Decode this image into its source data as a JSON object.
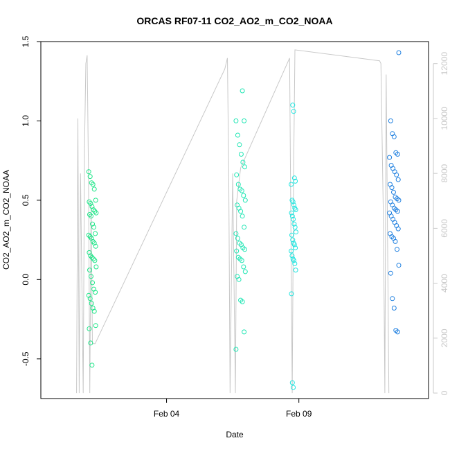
{
  "chart_data": {
    "type": "scatter",
    "title": "ORCAS RF07-11 CO2_AO2_m_CO2_NOAA",
    "xlabel": "Date",
    "ylabel": "CO2_AO2_m_CO2_NOAA",
    "x_ticks": [
      "Feb 04",
      "Feb 09"
    ],
    "x_tick_days": [
      4,
      9
    ],
    "x_range_days": [
      -0.75,
      13.9
    ],
    "y_ticks": [
      "-0.5",
      "0.0",
      "0.5",
      "1.0",
      "1.5"
    ],
    "y_ticks_values": [
      -0.5,
      0,
      0.5,
      1.0,
      1.5
    ],
    "ylim": [
      -0.75,
      1.5
    ],
    "right_axis": {
      "ticks": [
        "0",
        "2000",
        "4000",
        "6000",
        "8000",
        "10000",
        "12000"
      ],
      "tick_values": [
        0,
        2000,
        4000,
        6000,
        8000,
        10000,
        12000
      ],
      "range": [
        -200,
        12800
      ],
      "color": "#c8c8c8"
    },
    "grid": false,
    "legend": "none",
    "colors": {
      "flight1": "#1ee688",
      "flight2": "#20e6b4",
      "flight3": "#20e6e0",
      "flight4": "#2080e0",
      "altitude": "#c8c8c8"
    },
    "series": [
      {
        "color_key": "flight1",
        "x_day": 1.2,
        "spread_day": 0.28,
        "values": [
          0.68,
          0.65,
          0.61,
          0.6,
          0.57,
          0.5,
          0.49,
          0.48,
          0.46,
          0.44,
          0.43,
          0.42,
          0.41,
          0.4,
          0.35,
          0.33,
          0.29,
          0.28,
          0.27,
          0.26,
          0.24,
          0.23,
          0.21,
          0.17,
          0.15,
          0.14,
          0.13,
          0.12,
          0.08,
          0.06,
          0.02,
          -0.02,
          -0.06,
          -0.08,
          -0.1,
          -0.12,
          -0.15,
          -0.18,
          -0.2,
          -0.29,
          -0.31,
          -0.4,
          -0.54
        ]
      },
      {
        "color_key": "flight2",
        "x_day": 6.8,
        "spread_day": 0.35,
        "values": [
          1.19,
          1.0,
          1.0,
          0.91,
          0.85,
          0.79,
          0.74,
          0.71,
          0.66,
          0.6,
          0.57,
          0.56,
          0.53,
          0.5,
          0.47,
          0.45,
          0.43,
          0.4,
          0.33,
          0.29,
          0.26,
          0.23,
          0.22,
          0.2,
          0.19,
          0.18,
          0.14,
          0.13,
          0.12,
          0.08,
          0.05,
          0.02,
          0.0,
          -0.13,
          -0.14,
          -0.33,
          -0.44
        ]
      },
      {
        "color_key": "flight3",
        "x_day": 8.8,
        "spread_day": 0.18,
        "values": [
          1.1,
          1.06,
          0.64,
          0.62,
          0.6,
          0.5,
          0.49,
          0.47,
          0.45,
          0.44,
          0.42,
          0.4,
          0.38,
          0.35,
          0.33,
          0.3,
          0.28,
          0.25,
          0.23,
          0.22,
          0.2,
          0.18,
          0.15,
          0.13,
          0.12,
          0.1,
          0.06,
          -0.09,
          -0.65,
          -0.68
        ]
      },
      {
        "color_key": "flight4",
        "x_day": 12.6,
        "spread_day": 0.35,
        "values": [
          1.43,
          1.0,
          0.92,
          0.9,
          0.8,
          0.79,
          0.77,
          0.72,
          0.7,
          0.68,
          0.66,
          0.63,
          0.6,
          0.58,
          0.55,
          0.52,
          0.51,
          0.5,
          0.49,
          0.47,
          0.45,
          0.44,
          0.43,
          0.42,
          0.4,
          0.38,
          0.36,
          0.34,
          0.32,
          0.29,
          0.27,
          0.26,
          0.24,
          0.19,
          0.09,
          0.04,
          -0.12,
          -0.18,
          -0.32,
          -0.33
        ]
      }
    ],
    "altitude_line": {
      "axis": "right",
      "points": [
        [
          0.6,
          0
        ],
        [
          0.65,
          10000
        ],
        [
          0.7,
          0
        ],
        [
          0.75,
          8000
        ],
        [
          0.85,
          0
        ],
        [
          0.9,
          9000
        ],
        [
          0.95,
          12000
        ],
        [
          1.0,
          12300
        ],
        [
          1.05,
          8000
        ],
        [
          1.1,
          0
        ],
        [
          1.15,
          7000
        ],
        [
          1.2,
          1800
        ],
        [
          1.3,
          1800
        ],
        [
          6.2,
          11800
        ],
        [
          6.3,
          12200
        ],
        [
          6.35,
          8000
        ],
        [
          6.4,
          0
        ],
        [
          6.5,
          8000
        ],
        [
          6.6,
          0
        ],
        [
          6.65,
          7000
        ],
        [
          6.8,
          8200
        ],
        [
          8.65,
          12200
        ],
        [
          8.7,
          6000
        ],
        [
          8.75,
          0
        ],
        [
          8.8,
          8000
        ],
        [
          8.85,
          12500
        ],
        [
          12.05,
          12100
        ],
        [
          12.1,
          12000
        ],
        [
          12.2,
          6000
        ],
        [
          12.25,
          0
        ],
        [
          12.3,
          11600
        ],
        [
          12.4,
          0
        ]
      ]
    }
  }
}
